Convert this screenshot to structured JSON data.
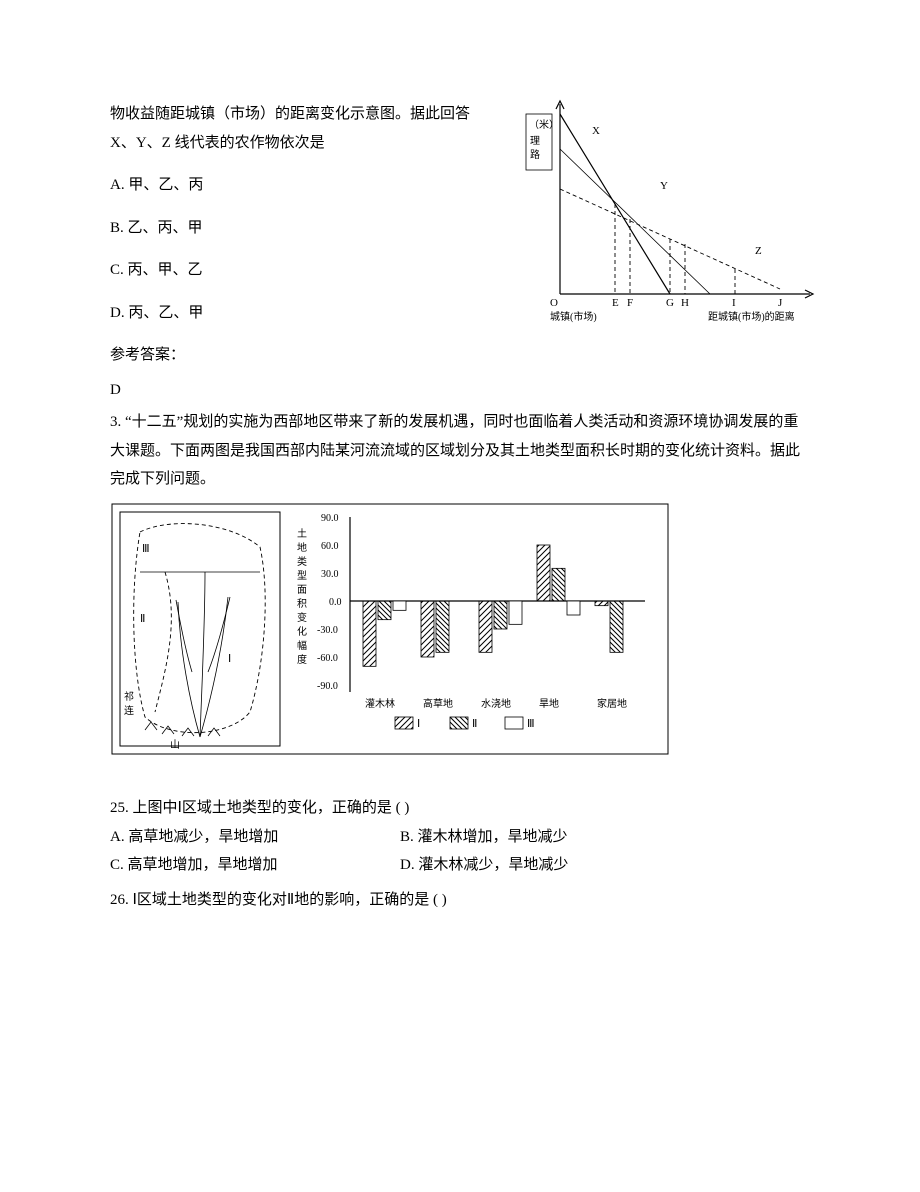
{
  "q2": {
    "para_cont": "物收益随距城镇（市场）的距离变化示意图。据此回答 X、Y、Z 线代表的农作物依次是",
    "optA": "A.  甲、乙、丙",
    "optB": "B.  乙、丙、甲",
    "optC": "C.  丙、甲、乙",
    "optD": "D.  丙、乙、甲",
    "ans_label": "参考答案：",
    "ans": "D",
    "fig": {
      "ylabel_top": "（米）",
      "ylabel_bot": "理路",
      "origin": "O",
      "xticks": [
        "E",
        "F",
        "G",
        "H",
        "I",
        "J"
      ],
      "line_labels": [
        "X",
        "Y",
        "Z"
      ],
      "xlabel_left": "城镇(市场)",
      "xlabel_right": "距城镇(市场)的距离"
    }
  },
  "q3": {
    "intro": "3. “十二五”规划的实施为西部地区带来了新的发展机遇，同时也面临着人类活动和资源环境协调发展的重大课题。下面两图是我国西部内陆某河流流域的区域划分及其土地类型面积长时期的变化统计资料。据此完成下列问题。",
    "map": {
      "regions": [
        "Ⅲ",
        "Ⅱ",
        "Ⅰ"
      ],
      "mtn": "祁连山"
    },
    "chart": {
      "ylabel_chars": [
        "土",
        "地",
        "类",
        "型",
        "面",
        "积",
        "变",
        "化",
        "幅",
        "度"
      ],
      "yticks": [
        "90.0",
        "60.0",
        "30.0",
        "0.0",
        "-30.0",
        "-60.0",
        "-90.0"
      ],
      "categories": [
        "灌木林",
        "高草地",
        "水浇地",
        "旱地",
        "家居地"
      ],
      "legend": [
        "Ⅰ",
        "Ⅱ",
        "Ⅲ"
      ],
      "data": {
        "I": [
          -70,
          -60,
          -55,
          60,
          -5
        ],
        "II": [
          -20,
          -55,
          -30,
          35,
          -55
        ],
        "III": [
          -10,
          0,
          -25,
          -15,
          0
        ]
      }
    },
    "q25": {
      "stem": "25.  上图中Ⅰ区域土地类型的变化，正确的是     (       )",
      "A": "A.  高草地减少，旱地增加",
      "B": "B.  灌木林增加，旱地减少",
      "C": "C.  高草地增加，旱地增加",
      "D": "D.  灌木林减少，旱地减少"
    },
    "q26": {
      "stem": "26.  Ⅰ区域土地类型的变化对Ⅱ地的影响，正确的是      (       )"
    }
  }
}
